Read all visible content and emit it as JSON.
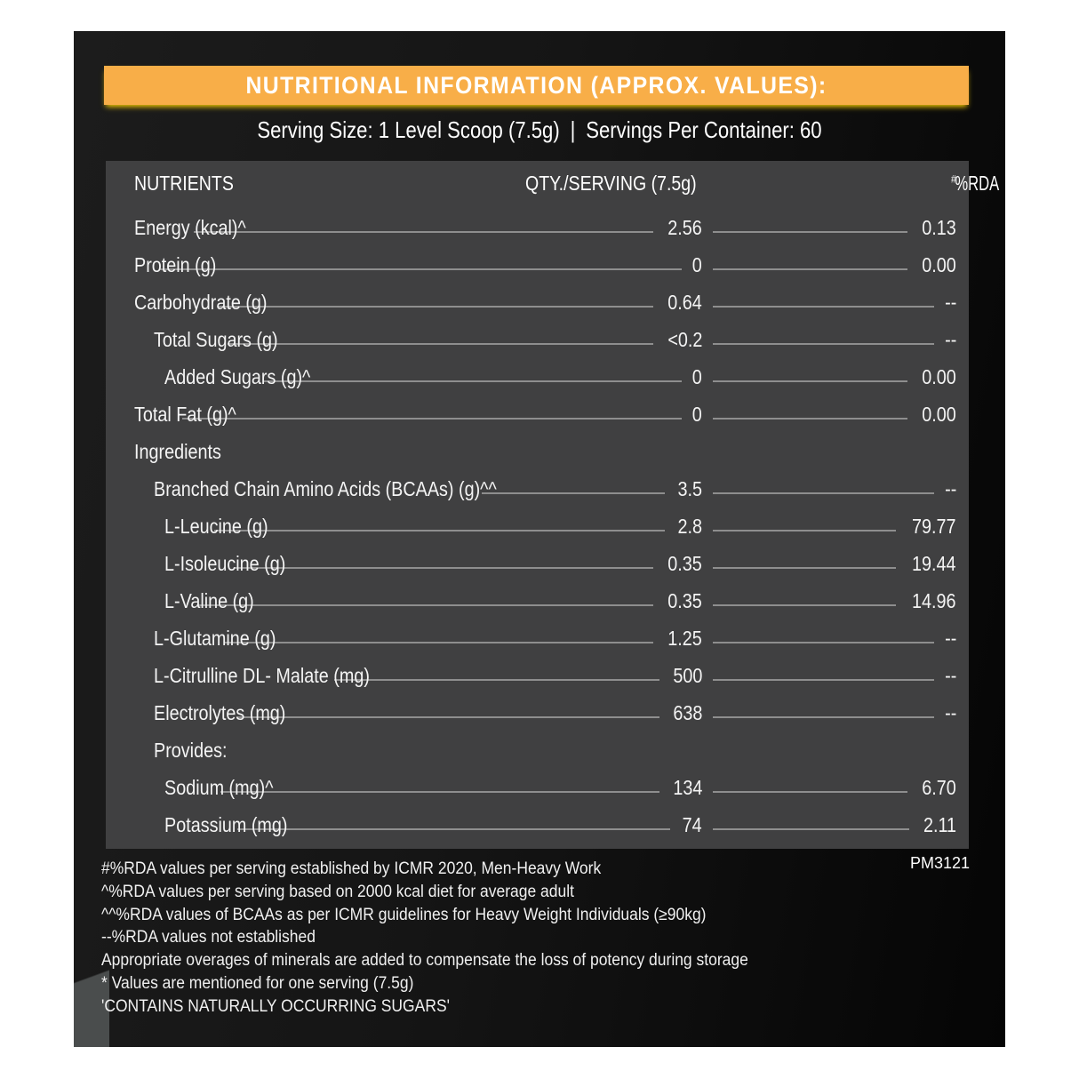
{
  "title": "NUTRITIONAL INFORMATION (APPROX. VALUES):",
  "serving": {
    "size": "Serving Size: 1 Level Scoop (7.5g)",
    "separator": "|",
    "per_container": "Servings Per Container: 60"
  },
  "table": {
    "headers": {
      "nutrients": "NUTRIENTS",
      "qty": "QTY./SERVING (7.5g)",
      "rda": "%RDA",
      "rda_mark": "#"
    },
    "rows": [
      {
        "name": "Energy (kcal)^",
        "qty": "2.56",
        "rda": "0.13",
        "indent": 0
      },
      {
        "name": "Protein (g)",
        "qty": "0",
        "rda": "0.00",
        "indent": 0
      },
      {
        "name": "Carbohydrate (g)",
        "qty": "0.64",
        "rda": "--",
        "indent": 0
      },
      {
        "name": "Total Sugars (g)",
        "qty": "<0.2",
        "rda": "--",
        "indent": 1
      },
      {
        "name": "Added Sugars (g)^",
        "qty": "0",
        "rda": "0.00",
        "indent": 2
      },
      {
        "name": "Total Fat (g)^",
        "qty": "0",
        "rda": "0.00",
        "indent": 0
      },
      {
        "name": "Ingredients",
        "qty": "",
        "rda": "",
        "indent": 0,
        "header": true
      },
      {
        "name": "Branched Chain Amino Acids (BCAAs) (g)^^",
        "qty": "3.5",
        "rda": "--",
        "indent": 1
      },
      {
        "name": "L-Leucine (g)",
        "qty": "2.8",
        "rda": "79.77",
        "indent": 2
      },
      {
        "name": "L-Isoleucine (g)",
        "qty": "0.35",
        "rda": "19.44",
        "indent": 2
      },
      {
        "name": "L-Valine (g)",
        "qty": "0.35",
        "rda": "14.96",
        "indent": 2
      },
      {
        "name": "L-Glutamine (g)",
        "qty": "1.25",
        "rda": "--",
        "indent": 1
      },
      {
        "name": "L-Citrulline DL- Malate (mg)",
        "qty": "500",
        "rda": "--",
        "indent": 1
      },
      {
        "name": "Electrolytes (mg)",
        "qty": "638",
        "rda": "--",
        "indent": 1
      },
      {
        "name": "Provides:",
        "qty": "",
        "rda": "",
        "indent": 1,
        "header": true
      },
      {
        "name": "Sodium (mg)^",
        "qty": "134",
        "rda": "6.70",
        "indent": 2
      },
      {
        "name": "Potassium (mg)",
        "qty": "74",
        "rda": "2.11",
        "indent": 2
      }
    ]
  },
  "code": "PM3121",
  "notes": [
    "#%RDA values per serving established by ICMR 2020, Men-Heavy Work",
    "^%RDA values per serving based on 2000 kcal diet for average adult",
    "^^%RDA values of BCAAs as per ICMR guidelines for Heavy Weight Individuals (≥90kg)",
    "--%RDA values not established",
    "Appropriate overages of minerals are added to compensate the loss of potency during storage",
    "* Values are mentioned for one serving (7.5g)",
    "'CONTAINS NATURALLY OCCURRING SUGARS'"
  ],
  "colors": {
    "banner": "#f8ae48",
    "table_bg": "#404041",
    "background": "#151515"
  }
}
